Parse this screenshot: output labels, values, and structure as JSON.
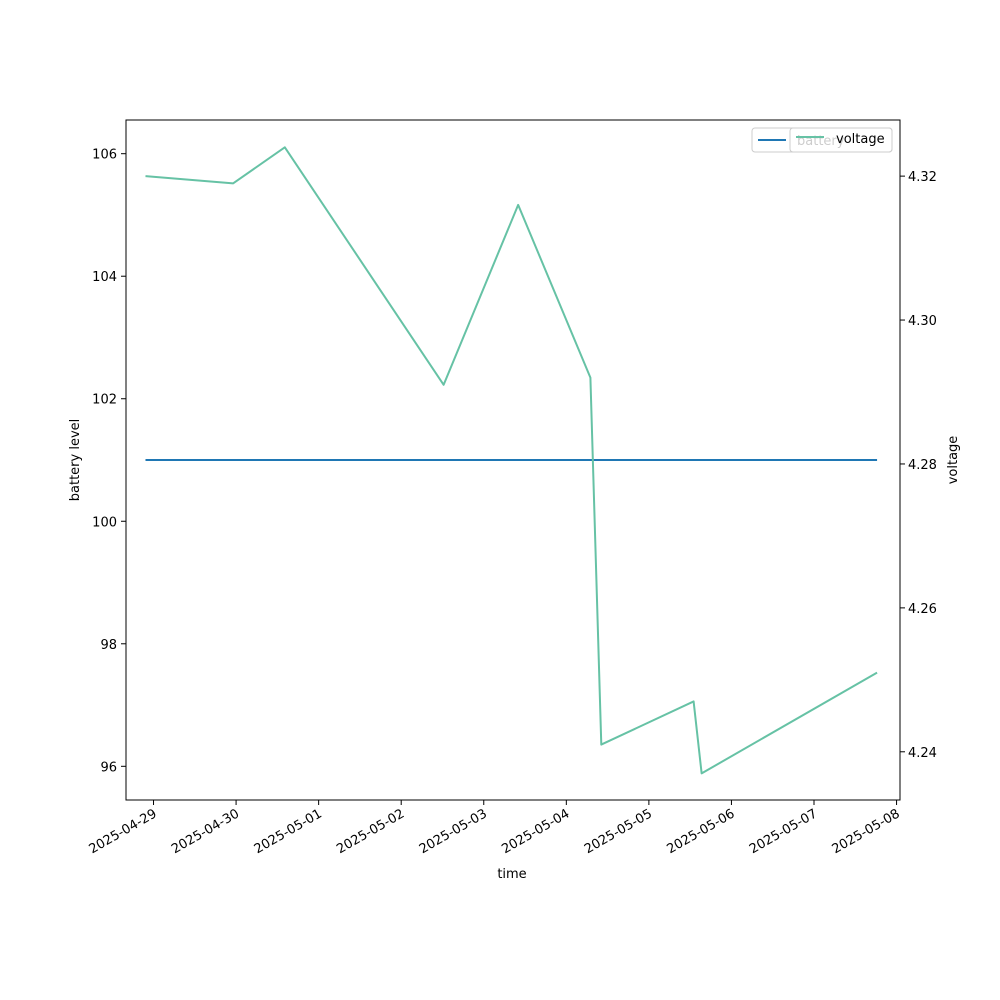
{
  "chart_data": {
    "type": "line",
    "xlabel": "time",
    "y_left_label": "battery level",
    "y_right_label": "voltage",
    "x_ticks": [
      "2025-04-29",
      "2025-04-30",
      "2025-05-01",
      "2025-05-02",
      "2025-05-03",
      "2025-05-04",
      "2025-05-05",
      "2025-05-06",
      "2025-05-07",
      "2025-05-08"
    ],
    "x_range": [
      "2025-04-28T16:00",
      "2025-05-08T01:00"
    ],
    "y_left_ticks": [
      96,
      98,
      100,
      102,
      104,
      106
    ],
    "y_left_range": [
      95.45,
      106.55
    ],
    "y_right_ticks": [
      4.24,
      4.26,
      4.28,
      4.3,
      4.32
    ],
    "y_right_range": [
      4.2333,
      4.3278
    ],
    "y_right_tick_labels": [
      "4.24",
      "4.26",
      "4.28",
      "4.30",
      "4.32"
    ],
    "legend_placement": "top-right",
    "series": [
      {
        "name": "battery",
        "axis": "left",
        "color": "#1f77b4",
        "points": [
          {
            "x": "2025-04-28T21:40",
            "y": 101
          },
          {
            "x": "2025-05-07T18:20",
            "y": 101
          }
        ]
      },
      {
        "name": "voltage",
        "axis": "right",
        "color": "#66c2a5",
        "points": [
          {
            "x": "2025-04-28T21:40",
            "y": 4.32
          },
          {
            "x": "2025-04-29T23:10",
            "y": 4.319
          },
          {
            "x": "2025-04-30T14:10",
            "y": 4.324
          },
          {
            "x": "2025-05-02T12:20",
            "y": 4.291
          },
          {
            "x": "2025-05-03T10:00",
            "y": 4.316
          },
          {
            "x": "2025-05-04T07:00",
            "y": 4.292
          },
          {
            "x": "2025-05-04T10:10",
            "y": 4.241
          },
          {
            "x": "2025-05-05T13:00",
            "y": 4.247
          },
          {
            "x": "2025-05-05T15:20",
            "y": 4.237
          },
          {
            "x": "2025-05-07T18:20",
            "y": 4.251
          }
        ]
      }
    ]
  }
}
